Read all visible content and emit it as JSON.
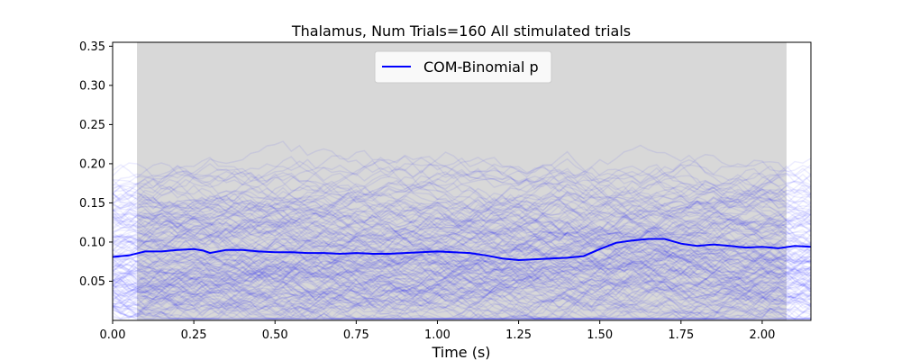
{
  "chart_data": {
    "type": "line",
    "title": "Thalamus, Num Trials=160 All stimulated trials",
    "xlabel": "Time (s)",
    "ylabel": "",
    "xlim": [
      0.0,
      2.15
    ],
    "ylim": [
      0.0,
      0.355
    ],
    "xticks": [
      0.0,
      0.25,
      0.5,
      0.75,
      1.0,
      1.25,
      1.5,
      1.75,
      2.0
    ],
    "xtick_labels": [
      "0.00",
      "0.25",
      "0.50",
      "0.75",
      "1.00",
      "1.25",
      "1.50",
      "1.75",
      "2.00"
    ],
    "yticks": [
      0.05,
      0.1,
      0.15,
      0.2,
      0.25,
      0.3,
      0.35
    ],
    "ytick_labels": [
      "0.05",
      "0.10",
      "0.15",
      "0.20",
      "0.25",
      "0.30",
      "0.35"
    ],
    "grid": false,
    "shaded_region": {
      "x_start": 0.075,
      "x_end": 2.075,
      "color": "#d8d8d8"
    },
    "legend": {
      "placement": "top-center",
      "entries": [
        {
          "label": "COM-Binomial p",
          "color": "#0000ff"
        }
      ]
    },
    "background_trials": {
      "count": 160,
      "color": "#0000ff",
      "opacity": 0.07,
      "y_range": [
        0.0,
        0.35
      ]
    },
    "series": [
      {
        "name": "COM-Binomial p",
        "color": "#0000ff",
        "x": [
          0.0,
          0.05,
          0.1,
          0.15,
          0.2,
          0.25,
          0.28,
          0.3,
          0.35,
          0.4,
          0.45,
          0.5,
          0.55,
          0.6,
          0.65,
          0.7,
          0.75,
          0.8,
          0.85,
          0.9,
          0.95,
          1.0,
          1.05,
          1.1,
          1.15,
          1.2,
          1.25,
          1.3,
          1.35,
          1.4,
          1.45,
          1.5,
          1.55,
          1.6,
          1.65,
          1.7,
          1.75,
          1.8,
          1.85,
          1.9,
          1.95,
          2.0,
          2.05,
          2.1,
          2.15
        ],
        "values": [
          0.081,
          0.083,
          0.088,
          0.088,
          0.09,
          0.091,
          0.089,
          0.086,
          0.09,
          0.09,
          0.088,
          0.087,
          0.087,
          0.086,
          0.086,
          0.085,
          0.086,
          0.085,
          0.085,
          0.086,
          0.087,
          0.088,
          0.087,
          0.086,
          0.083,
          0.079,
          0.077,
          0.078,
          0.079,
          0.08,
          0.082,
          0.091,
          0.099,
          0.102,
          0.104,
          0.104,
          0.098,
          0.095,
          0.097,
          0.095,
          0.093,
          0.094,
          0.092,
          0.095,
          0.094
        ]
      }
    ]
  }
}
